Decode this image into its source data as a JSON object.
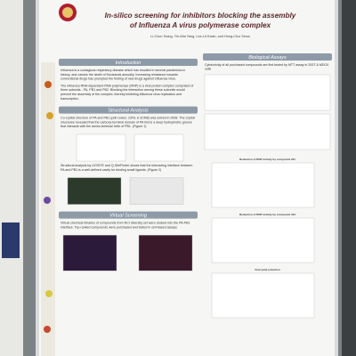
{
  "poster": {
    "title": [
      "In-silico screening for inhibitors blocking the assembly",
      "of Influenza A virus polymerase complex"
    ],
    "authors": "Li-Chun Tsang, Yin-Wai Yang, Lee-Lit Kwan, and Hong-Chui Seow",
    "sections": [
      {
        "heading": "Introduction",
        "paragraphs": [
          "Influenza is a contagious respiratory disease which has resulted in several pandemics in history, and causes the death of thousands annually. Increasing resistance towards conventional drugs has prompted the finding of new drugs against influenza virus.",
          "The influenza RNA-dependent RNA polymerase (RNP) is a viral protein complex comprised of three subunits - PA, PB1 and PB2. Blocking the interaction among these subunits would prevent the assembly of the complex, thereby inhibiting influenza virus replication and transcription."
        ]
      },
      {
        "heading": "Structural Analysis",
        "paragraphs": [
          "Co-crystal structure of PA and PB1 (pdb codes: 2ZNL & 3CM8) was solved in 2008. The crystal structures revealed that the carboxy-terminal domain of PA forms a deep hydrophobic groove that interacts with the amino-terminal helix of PB1. (Figure 1)",
          "Structural analysis by LIGSITE and Q-SiteFinder shows that the interacting interface between PA and PB1 is a well-defined cavity for binding small ligands. (Figure 2)"
        ]
      },
      {
        "heading": "Virtual Screening",
        "paragraphs": [
          "Virtual chemical libraries of compounds from NCI diversity set were docked into the PA-PB1 interface. Top ranked compounds were purchased and tested in cell-based assays."
        ]
      }
    ],
    "results": {
      "heading": "Biological Assays",
      "intro": "Cytotoxicity of all purchased compounds are first tested by MTT assay in 293T & MDCK cells",
      "charts": [
        "Reduction of RNP activity by compound 221",
        "Reduction of RNP activity by compound 313",
        "Viral yield reduction"
      ]
    }
  }
}
